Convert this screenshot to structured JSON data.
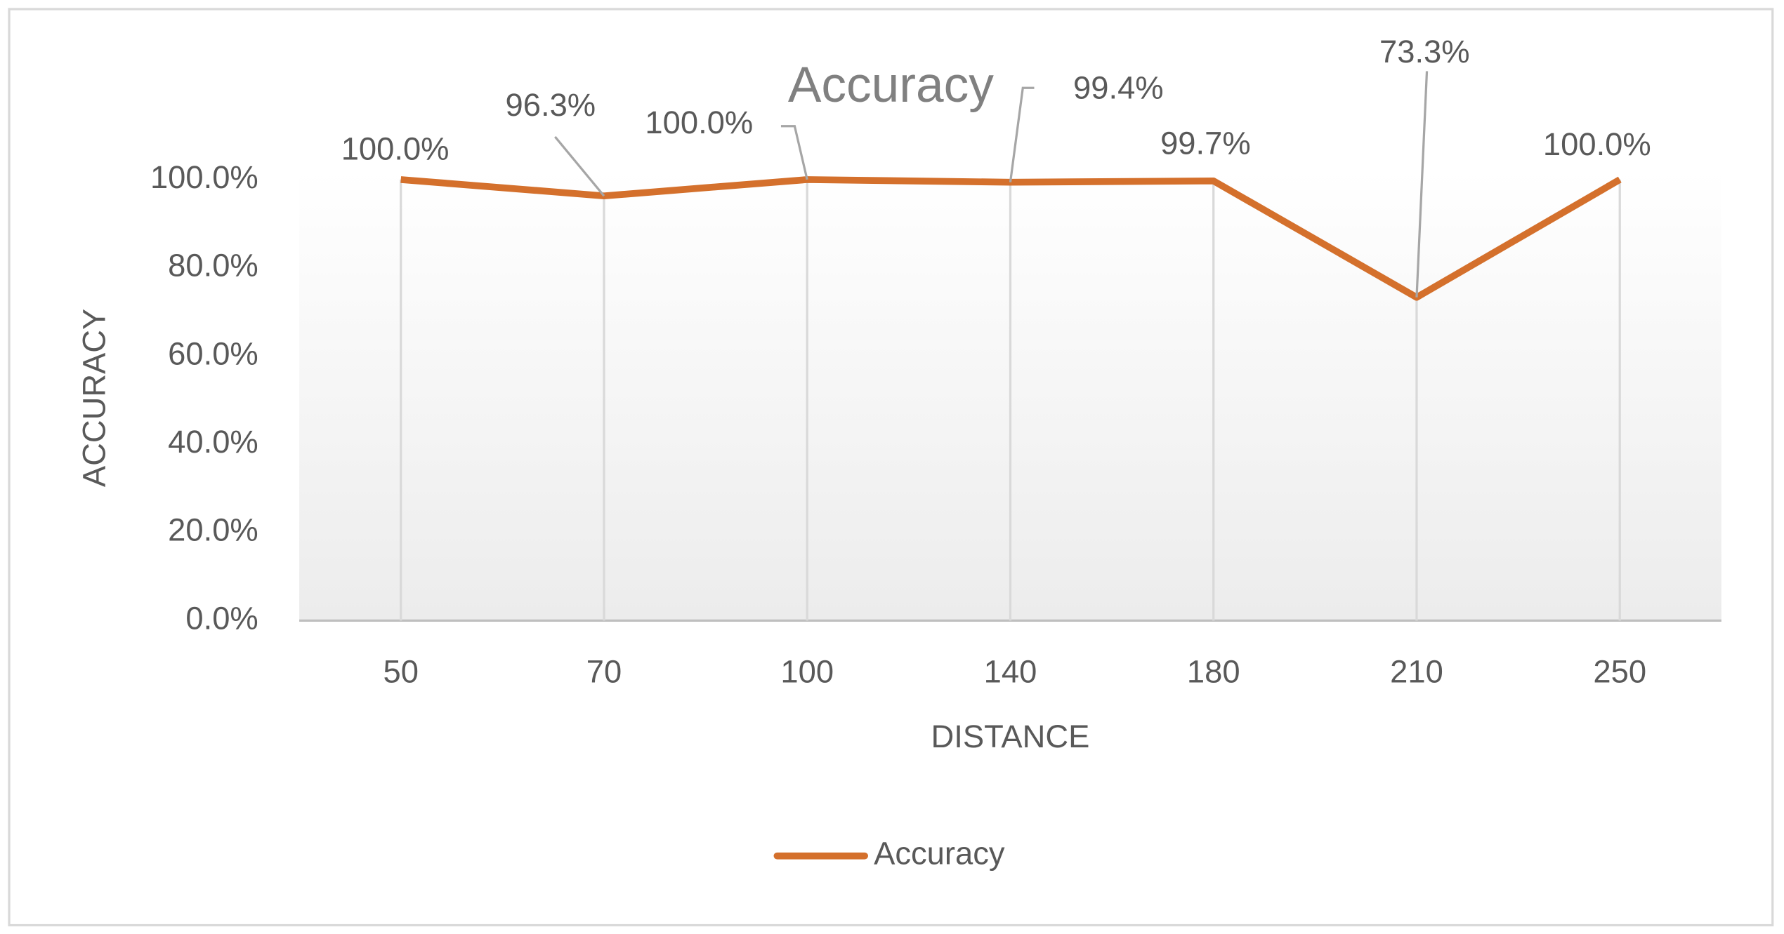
{
  "chart_data": {
    "type": "line",
    "title": "Accuracy",
    "x_label": "DISTANCE",
    "y_label": "ACCURACY",
    "categories": [
      "50",
      "70",
      "100",
      "140",
      "180",
      "210",
      "250"
    ],
    "series": [
      {
        "name": "Accuracy",
        "color": "#d4702c",
        "values": [
          100,
          96.3,
          100,
          99.4,
          99.7,
          73.3,
          100
        ],
        "value_labels": [
          "100.0%",
          "96.3%",
          "100.0%",
          "99.4%",
          "99.7%",
          "73.3%",
          "100.0%"
        ]
      }
    ],
    "ylim": [
      0,
      100
    ],
    "yticks": [
      {
        "value": 0,
        "label": "0.0%"
      },
      {
        "value": 20,
        "label": "20.0%"
      },
      {
        "value": 40,
        "label": "40.0%"
      },
      {
        "value": 60,
        "label": "60.0%"
      },
      {
        "value": 80,
        "label": "80.0%"
      },
      {
        "value": 100,
        "label": "100.0%"
      }
    ],
    "drop_lines": true,
    "legend": "bottom"
  }
}
